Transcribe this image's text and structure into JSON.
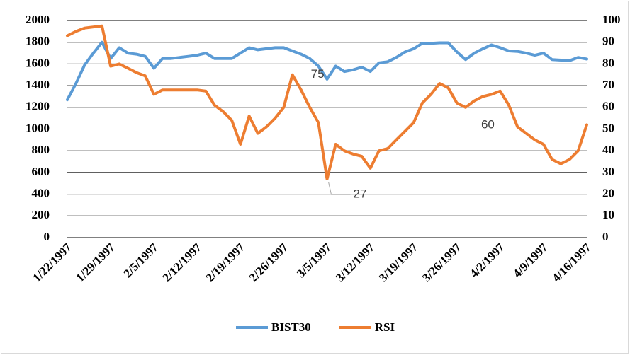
{
  "chart_data": {
    "type": "line",
    "categories": [
      "1/22/1997",
      null,
      null,
      null,
      null,
      "1/29/1997",
      null,
      null,
      null,
      null,
      "2/5/1997",
      null,
      null,
      null,
      null,
      "2/12/1997",
      null,
      null,
      null,
      null,
      "2/19/1997",
      null,
      null,
      null,
      null,
      "2/26/1997",
      null,
      null,
      null,
      null,
      "3/5/1997",
      null,
      null,
      null,
      null,
      "3/12/1997",
      null,
      null,
      null,
      null,
      "3/19/1997",
      null,
      null,
      null,
      null,
      "3/26/1997",
      null,
      null,
      null,
      null,
      "4/2/1997",
      null,
      null,
      null,
      null,
      "4/9/1997",
      null,
      null,
      null,
      null,
      "4/16/1997"
    ],
    "series": [
      {
        "name": "BIST30",
        "color": "#5b9bd5",
        "values": [
          1270,
          1420,
          1590,
          1700,
          1800,
          1650,
          1750,
          1700,
          1690,
          1670,
          1560,
          1650,
          1650,
          1660,
          1670,
          1680,
          1700,
          1650,
          1650,
          1650,
          1700,
          1750,
          1730,
          1740,
          1750,
          1750,
          1720,
          1690,
          1650,
          1580,
          1460,
          1580,
          1530,
          1545,
          1570,
          1530,
          1610,
          1620,
          1660,
          1710,
          1740,
          1790,
          1790,
          1795,
          1795,
          1710,
          1640,
          1700,
          1740,
          1775,
          1750,
          1720,
          1715,
          1700,
          1680,
          1700,
          1640,
          1635,
          1630,
          1660,
          1645
        ]
      },
      {
        "name": "RSI",
        "color": "#ed7d31",
        "axis": "y2",
        "values": [
          93,
          95,
          96.5,
          97,
          97.5,
          79,
          80,
          78,
          76,
          74.5,
          66,
          68,
          68,
          68,
          68,
          68,
          67.5,
          61,
          58,
          54,
          43,
          56,
          48,
          51,
          55,
          60,
          75,
          68,
          60,
          53,
          27,
          43,
          40,
          38.5,
          37.5,
          32,
          40,
          41,
          45,
          49,
          53,
          62,
          66,
          71,
          69,
          62,
          60,
          63,
          65,
          66,
          67.5,
          61,
          51,
          48,
          45,
          43,
          36,
          34,
          36,
          40,
          52
        ],
        "value_labels": [
          null,
          null,
          null,
          null,
          null,
          null,
          null,
          null,
          null,
          null,
          null,
          null,
          null,
          null,
          null,
          null,
          null,
          null,
          null,
          null,
          null,
          null,
          null,
          null,
          null,
          null,
          "75",
          null,
          null,
          null,
          "27",
          null,
          null,
          null,
          null,
          null,
          null,
          null,
          null,
          null,
          null,
          null,
          null,
          null,
          null,
          null,
          "60",
          null,
          null,
          null,
          null,
          null,
          null,
          null,
          null,
          null,
          null,
          null,
          null,
          null,
          null
        ]
      }
    ],
    "ylim": [
      0,
      2000
    ],
    "yticks": [
      0,
      200,
      400,
      600,
      800,
      1000,
      1200,
      1400,
      1600,
      1800,
      2000
    ],
    "y2lim": [
      0,
      100
    ],
    "y2ticks": [
      0,
      10,
      20,
      30,
      40,
      50,
      60,
      70,
      80,
      90,
      100
    ],
    "grid": true,
    "legend": "bottom"
  }
}
